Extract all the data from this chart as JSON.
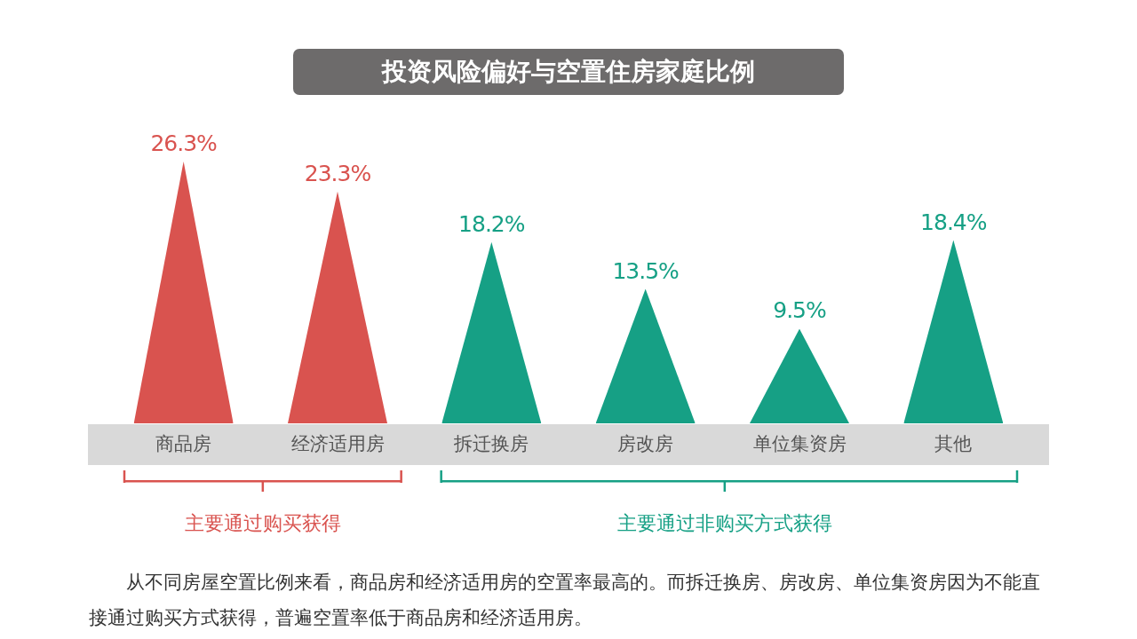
{
  "chart_data": {
    "type": "bar",
    "title": "投资风险偏好与空置住房家庭比例",
    "categories": [
      "商品房",
      "经济适用房",
      "拆迁换房",
      "房改房",
      "单位集资房",
      "其他"
    ],
    "values": [
      26.3,
      23.3,
      18.2,
      13.5,
      9.5,
      18.4
    ],
    "colors": [
      "#d9534f",
      "#d9534f",
      "#16a085",
      "#16a085",
      "#16a085",
      "#16a085"
    ],
    "value_labels": [
      "26.3%",
      "23.3%",
      "18.2%",
      "13.5%",
      "9.5%",
      "18.4%"
    ],
    "annotations": [
      "主要通过购买获得",
      "主要通过非购买方式获得",
      "从不同房屋空置比例来看，商品房和经济适用房的空置率最高的。而拆迁换房、房改房、单位集资房因为不能直接通过购买方式获得，普遍空置率低于商品房和经济适用房。"
    ]
  }
}
